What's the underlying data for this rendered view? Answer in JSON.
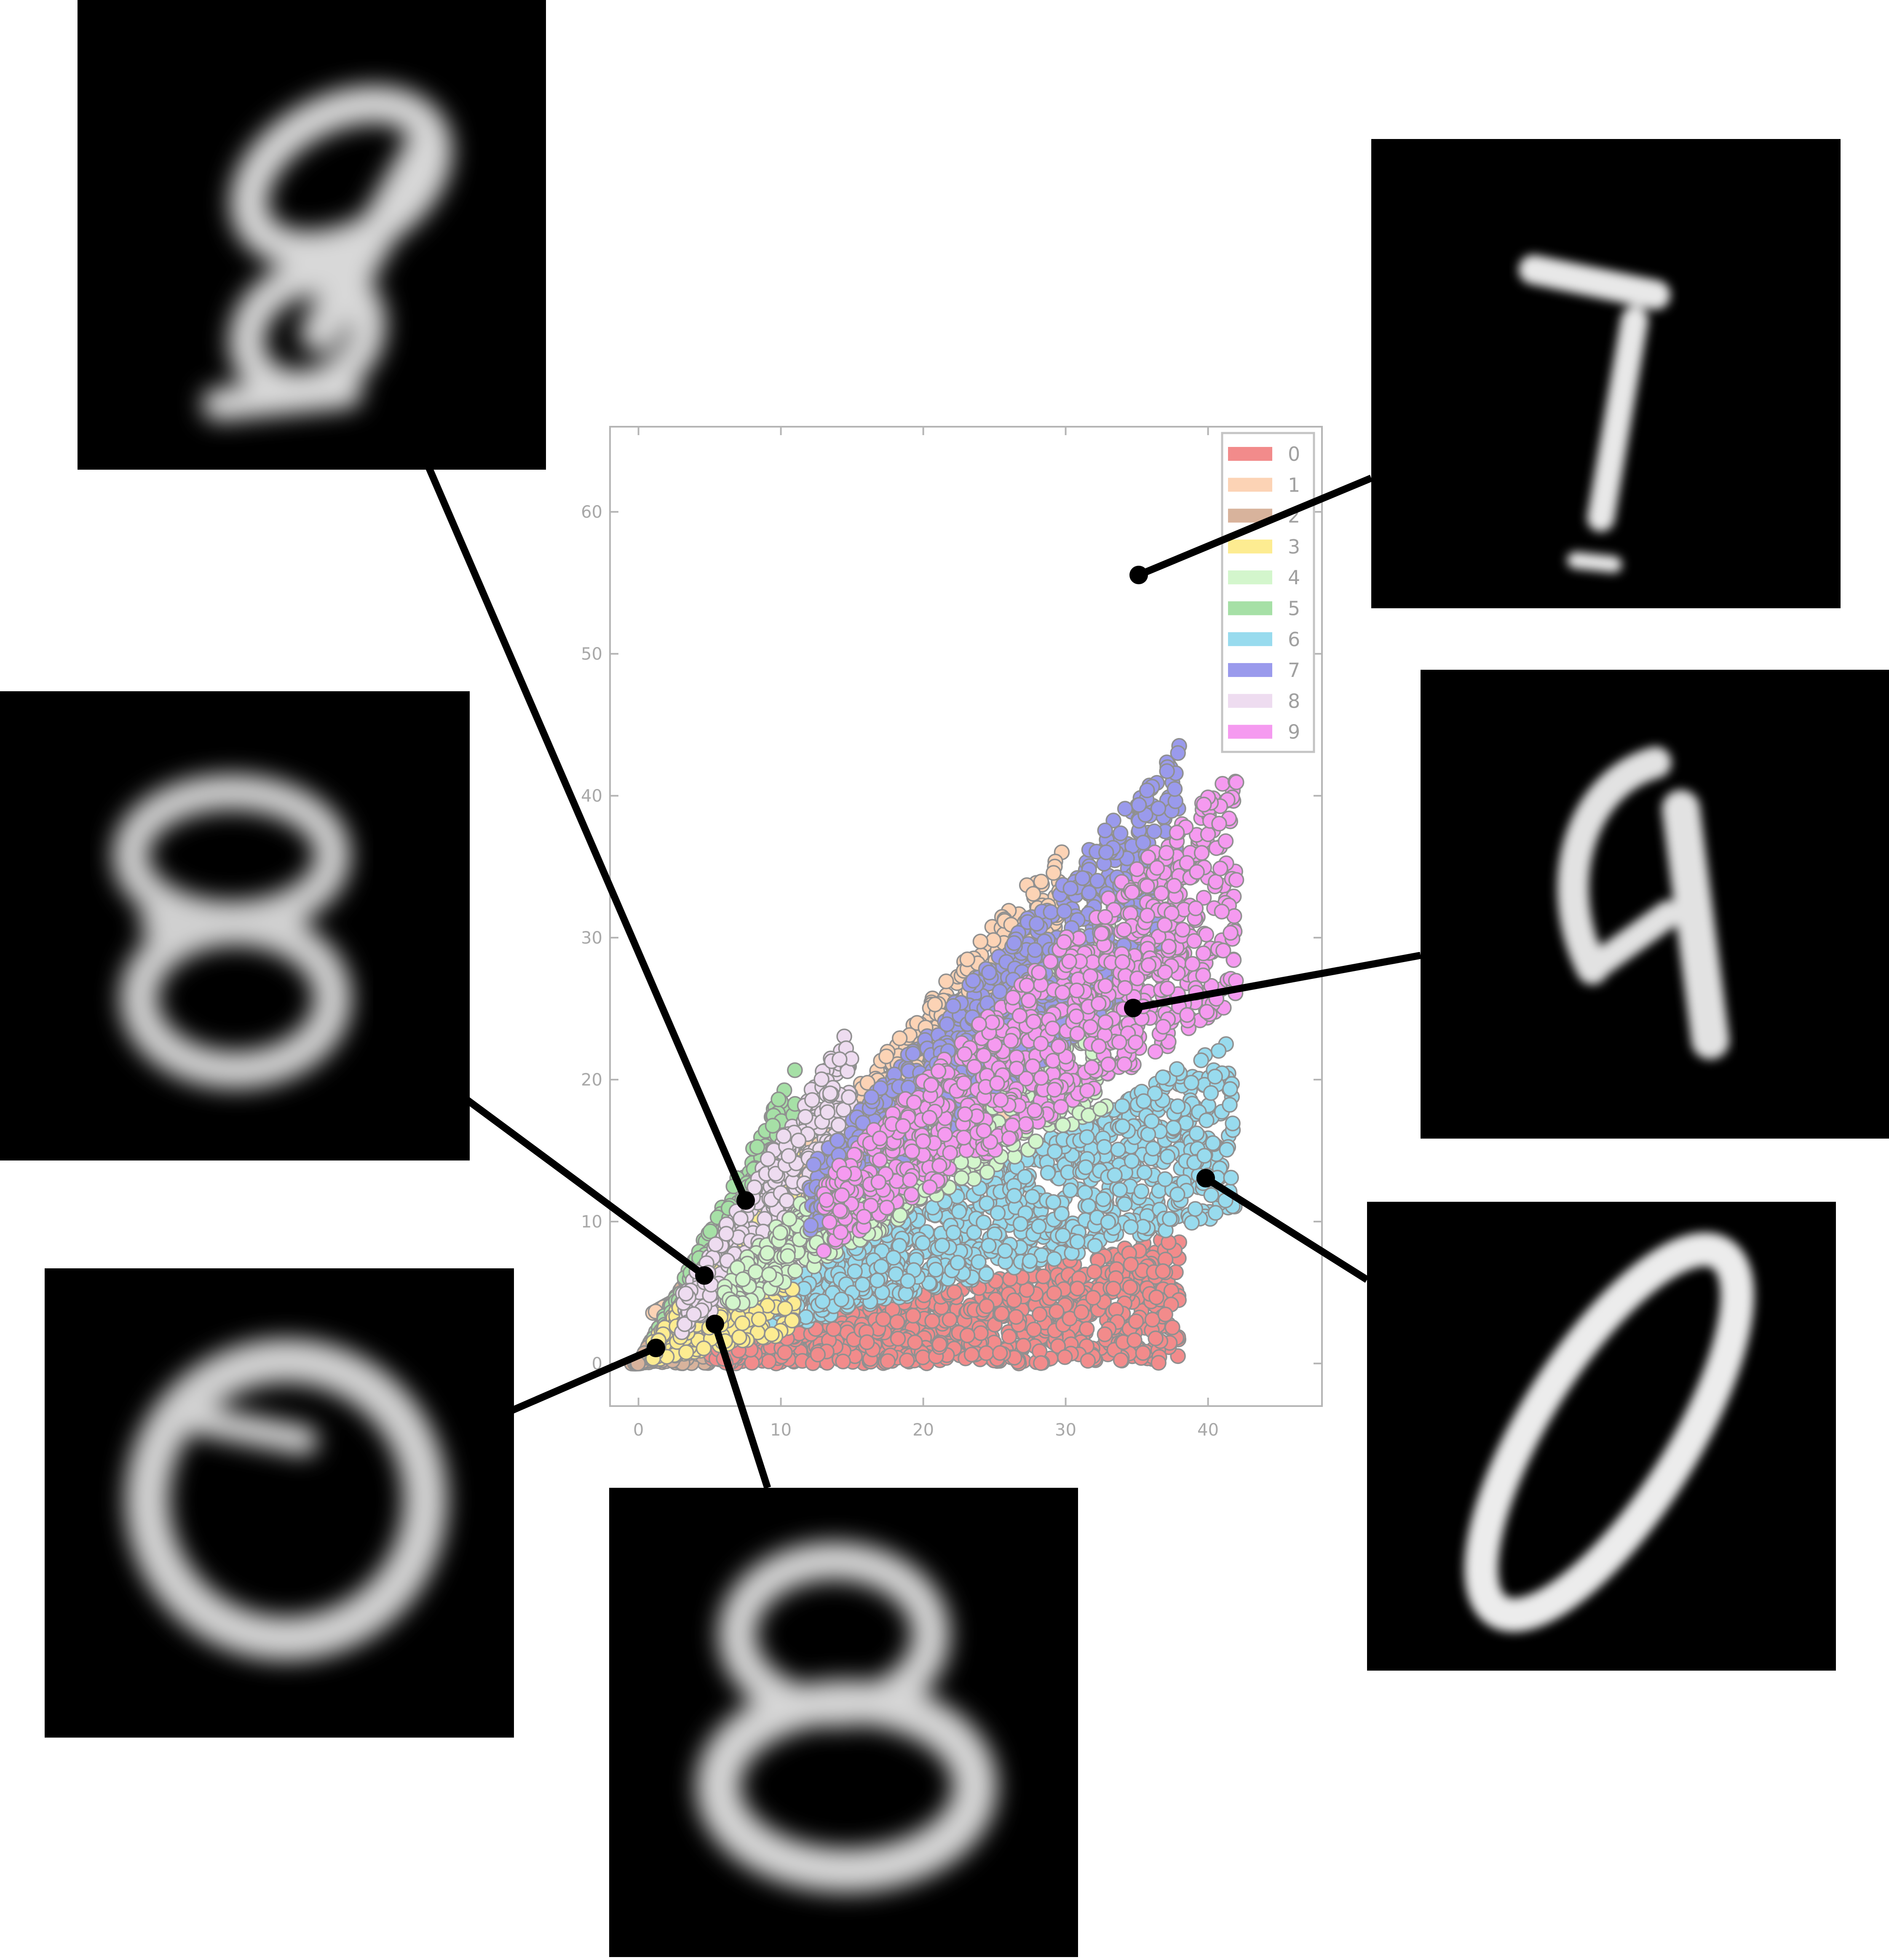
{
  "chart_data": {
    "type": "scatter",
    "title": "",
    "xlabel": "",
    "ylabel": "",
    "xlim": [
      -2,
      48
    ],
    "ylim": [
      -3,
      66
    ],
    "x_ticks": [
      0,
      10,
      20,
      30,
      40
    ],
    "y_ticks": [
      0,
      10,
      20,
      30,
      40,
      50,
      60
    ],
    "x_tick_labels": [
      "0",
      "10",
      "20",
      "30",
      "40"
    ],
    "y_tick_labels": [
      "0",
      "10",
      "20",
      "30",
      "40",
      "50",
      "60"
    ],
    "grid": false,
    "legend_position": "top-right",
    "series": [
      {
        "name": "0",
        "color": "#f28b8b",
        "cluster": {
          "x": [
            5,
            38
          ],
          "base": [
            0,
            0
          ],
          "slope_low": 0.0,
          "slope_high": 0.24,
          "count": 900
        }
      },
      {
        "name": "1",
        "color": "#fcd3b5",
        "cluster": {
          "x": [
            1,
            30
          ],
          "base": [
            1,
            28
          ],
          "slope_low": 0.55,
          "slope_high": 1.2,
          "count": 1100
        }
      },
      {
        "name": "2",
        "color": "#d8b39c",
        "cluster": {
          "x": [
            -0.5,
            5
          ],
          "base": [
            0,
            0
          ],
          "slope_low": 0.0,
          "slope_high": 1.8,
          "count": 500
        }
      },
      {
        "name": "3",
        "color": "#fdec91",
        "cluster": {
          "x": [
            1,
            11
          ],
          "base": [
            0,
            0
          ],
          "slope_low": 0.2,
          "slope_high": 1.5,
          "count": 400
        }
      },
      {
        "name": "4",
        "color": "#d3f6cc",
        "cluster": {
          "x": [
            6,
            33
          ],
          "base": [
            0,
            0
          ],
          "slope_low": 0.55,
          "slope_high": 1.0,
          "count": 700
        }
      },
      {
        "name": "5",
        "color": "#a6e0a6",
        "cluster": {
          "x": [
            1,
            11
          ],
          "base": [
            0,
            0
          ],
          "slope_low": 0.6,
          "slope_high": 1.9,
          "count": 500
        }
      },
      {
        "name": "6",
        "color": "#98dbee",
        "cluster": {
          "x": [
            8,
            42
          ],
          "base": [
            0,
            0
          ],
          "slope_low": 0.25,
          "slope_high": 0.55,
          "count": 900
        }
      },
      {
        "name": "7",
        "color": "#9a9aec",
        "cluster": {
          "x": [
            12,
            38
          ],
          "base": [
            0,
            0
          ],
          "slope_low": 0.75,
          "slope_high": 1.15,
          "count": 850
        }
      },
      {
        "name": "8",
        "color": "#eedcf0",
        "cluster": {
          "x": [
            3,
            15
          ],
          "base": [
            0,
            0
          ],
          "slope_low": 0.7,
          "slope_high": 1.6,
          "count": 350
        }
      },
      {
        "name": "9",
        "color": "#f59af0",
        "cluster": {
          "x": [
            13,
            42
          ],
          "base": [
            0,
            0
          ],
          "slope_low": 0.6,
          "slope_high": 1.0,
          "count": 850
        }
      }
    ],
    "annotations": [
      {
        "anchor": [
          7.5,
          11.5
        ],
        "digit_image": "blurred-digit-9-8"
      },
      {
        "anchor": [
          4.6,
          6.1
        ],
        "digit_image": "blurred-digit-8"
      },
      {
        "anchor": [
          1.2,
          0.8
        ],
        "digit_image": "blurred-digit-0-6"
      },
      {
        "anchor": [
          5.3,
          2.5
        ],
        "digit_image": "blurred-digit-8-b"
      },
      {
        "anchor": [
          35,
          55.2
        ],
        "digit_image": "blurred-digit-7"
      },
      {
        "anchor": [
          34.6,
          24.7
        ],
        "digit_image": "blurred-digit-4-9"
      },
      {
        "anchor": [
          39.5,
          12.8
        ],
        "digit_image": "blurred-digit-0"
      }
    ]
  }
}
